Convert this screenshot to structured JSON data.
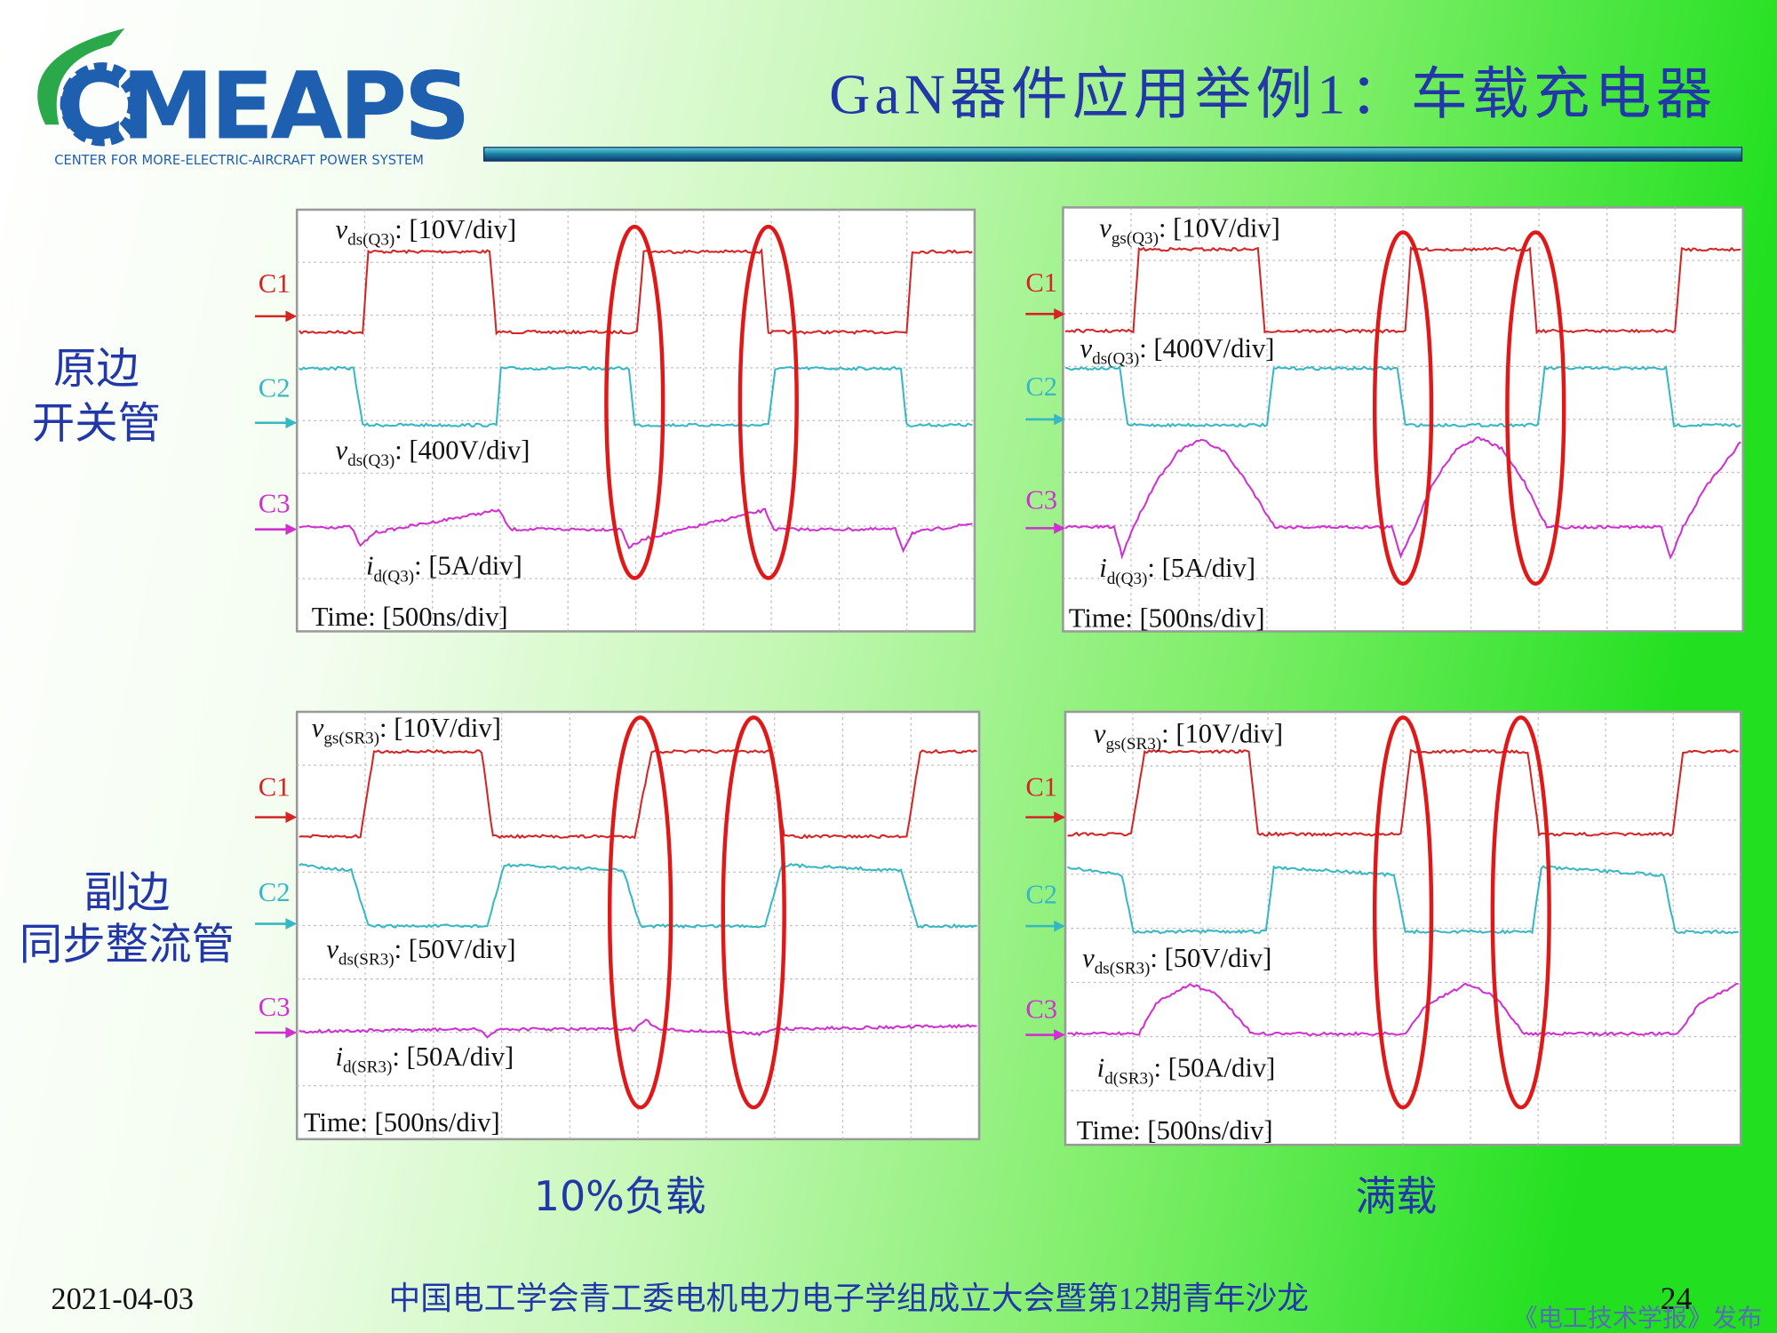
{
  "header": {
    "logo": "CMEAPS",
    "logo_subtitle": "CENTER FOR MORE-ELECTRIC-AIRCRAFT POWER SYSTEM",
    "title": "GaN器件应用举例1：车载充电器"
  },
  "row_labels": [
    [
      "原边",
      "开关管"
    ],
    [
      "副边",
      "同步整流管"
    ]
  ],
  "column_labels": [
    "10%负载",
    "满载"
  ],
  "panels": [
    {
      "channels": [
        "C1",
        "C2",
        "C3"
      ],
      "labels": [
        {
          "symbol": "v",
          "sub": "ds(Q3)",
          "scale": ": [10V/div]"
        },
        {
          "symbol": "v",
          "sub": "ds(Q3)",
          "scale": ": [400V/div]"
        },
        {
          "symbol": "i",
          "sub": "d(Q3)",
          "scale": ": [5A/div]"
        }
      ],
      "time": "Time: [500ns/div]"
    },
    {
      "channels": [
        "C1",
        "C2",
        "C3"
      ],
      "labels": [
        {
          "symbol": "v",
          "sub": "gs(Q3)",
          "scale": ": [10V/div]"
        },
        {
          "symbol": "v",
          "sub": "ds(Q3)",
          "scale": ": [400V/div]"
        },
        {
          "symbol": "i",
          "sub": "d(Q3)",
          "scale": ": [5A/div]"
        }
      ],
      "time": "Time: [500ns/div]"
    },
    {
      "channels": [
        "C1",
        "C2",
        "C3"
      ],
      "labels": [
        {
          "symbol": "v",
          "sub": "gs(SR3)",
          "scale": ": [10V/div]"
        },
        {
          "symbol": "v",
          "sub": "ds(SR3)",
          "scale": ": [50V/div]"
        },
        {
          "symbol": "i",
          "sub": "d(SR3)",
          "scale": ": [50A/div]"
        }
      ],
      "time": "Time: [500ns/div]"
    },
    {
      "channels": [
        "C1",
        "C2",
        "C3"
      ],
      "labels": [
        {
          "symbol": "v",
          "sub": "gs(SR3)",
          "scale": ": [10V/div]"
        },
        {
          "symbol": "v",
          "sub": "ds(SR3)",
          "scale": ": [50V/div]"
        },
        {
          "symbol": "i",
          "sub": "d(SR3)",
          "scale": ": [50A/div]"
        }
      ],
      "time": "Time: [500ns/div]"
    }
  ],
  "footer": {
    "date": "2021-04-03",
    "event": "中国电工学会青工委电机电力电子学组成立大会暨第12期青年沙龙",
    "page": "24",
    "watermark": "《电工技术学报》发布"
  }
}
